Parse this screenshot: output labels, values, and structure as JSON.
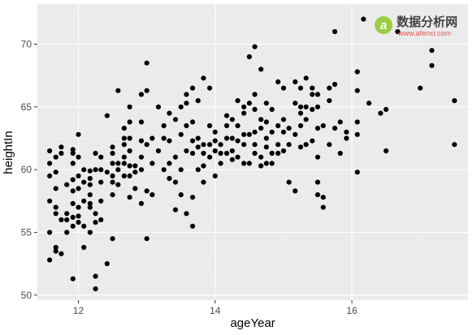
{
  "chart_data": {
    "type": "scatter",
    "xlabel": "ageYear",
    "ylabel": "heightIn",
    "xlim": [
      11.4,
      17.7
    ],
    "ylim": [
      49.6,
      73.2
    ],
    "x_ticks": [
      12,
      14,
      16
    ],
    "y_ticks": [
      50,
      55,
      60,
      65,
      70
    ],
    "x_tick_labels": [
      "12",
      "14",
      "16"
    ],
    "y_tick_labels": [
      "50",
      "55",
      "60",
      "65",
      "70"
    ],
    "grid": true,
    "legend": "none",
    "point_color": "#000000",
    "panel_color": "#ebebeb",
    "x": [
      11.58,
      11.58,
      11.58,
      11.58,
      11.58,
      11.58,
      11.67,
      11.67,
      11.67,
      11.67,
      11.67,
      11.67,
      11.67,
      11.75,
      11.75,
      11.75,
      11.75,
      11.83,
      11.83,
      11.83,
      11.83,
      11.92,
      11.92,
      11.92,
      11.92,
      11.92,
      11.92,
      11.92,
      11.92,
      11.92,
      12.0,
      12.0,
      12.0,
      12.0,
      12.0,
      12.0,
      12.0,
      12.08,
      12.08,
      12.08,
      12.08,
      12.08,
      12.17,
      12.17,
      12.17,
      12.17,
      12.17,
      12.17,
      12.17,
      12.25,
      12.25,
      12.25,
      12.25,
      12.25,
      12.25,
      12.33,
      12.33,
      12.33,
      12.33,
      12.33,
      12.42,
      12.42,
      12.42,
      12.5,
      12.5,
      12.5,
      12.5,
      12.5,
      12.5,
      12.5,
      12.58,
      12.58,
      12.58,
      12.58,
      12.67,
      12.67,
      12.67,
      12.67,
      12.67,
      12.67,
      12.75,
      12.75,
      12.75,
      12.75,
      12.75,
      12.75,
      12.75,
      12.83,
      12.83,
      12.83,
      12.92,
      12.92,
      12.92,
      12.92,
      12.92,
      12.92,
      13.0,
      13.0,
      13.0,
      13.0,
      13.0,
      13.08,
      13.08,
      13.08,
      13.17,
      13.17,
      13.25,
      13.25,
      13.25,
      13.33,
      13.33,
      13.33,
      13.33,
      13.42,
      13.42,
      13.42,
      13.42,
      13.5,
      13.5,
      13.5,
      13.5,
      13.58,
      13.58,
      13.58,
      13.58,
      13.58,
      13.67,
      13.67,
      13.67,
      13.67,
      13.67,
      13.67,
      13.75,
      13.75,
      13.75,
      13.75,
      13.83,
      13.83,
      13.83,
      13.83,
      13.83,
      13.92,
      13.92,
      13.92,
      13.92,
      14.0,
      14.0,
      14.0,
      14.0,
      14.08,
      14.08,
      14.08,
      14.17,
      14.17,
      14.17,
      14.17,
      14.25,
      14.25,
      14.25,
      14.25,
      14.33,
      14.33,
      14.33,
      14.33,
      14.42,
      14.42,
      14.42,
      14.42,
      14.42,
      14.5,
      14.5,
      14.5,
      14.5,
      14.58,
      14.58,
      14.58,
      14.58,
      14.58,
      14.58,
      14.67,
      14.67,
      14.67,
      14.67,
      14.67,
      14.75,
      14.75,
      14.75,
      14.75,
      14.75,
      14.83,
      14.83,
      14.83,
      14.83,
      14.92,
      14.92,
      14.92,
      14.92,
      15.0,
      15.0,
      15.0,
      15.0,
      15.08,
      15.08,
      15.08,
      15.17,
      15.17,
      15.17,
      15.17,
      15.25,
      15.25,
      15.25,
      15.25,
      15.25,
      15.33,
      15.33,
      15.33,
      15.33,
      15.42,
      15.42,
      15.42,
      15.42,
      15.5,
      15.5,
      15.5,
      15.5,
      15.5,
      15.5,
      15.58,
      15.58,
      15.58,
      15.67,
      15.67,
      15.67,
      15.75,
      15.75,
      15.75,
      15.83,
      15.83,
      15.92,
      15.92,
      16.08,
      16.08,
      16.08,
      16.08,
      16.08,
      16.17,
      16.25,
      16.42,
      16.5,
      16.5,
      16.67,
      17.0,
      17.17,
      17.17,
      17.5,
      17.5
    ],
    "y": [
      52.8,
      55.0,
      57.5,
      59.5,
      60.5,
      61.5,
      53.5,
      53.8,
      56.5,
      57.0,
      58.5,
      59.8,
      61.0,
      53.3,
      56.0,
      61.3,
      61.8,
      55.0,
      56.0,
      56.5,
      58.8,
      51.3,
      55.5,
      56.2,
      57.3,
      58.3,
      59.2,
      60.5,
      61.3,
      61.6,
      55.8,
      56.3,
      57.0,
      58.5,
      59.5,
      61.0,
      62.8,
      53.8,
      55.5,
      57.5,
      59.0,
      60.0,
      55.0,
      57.0,
      57.3,
      58.0,
      58.8,
      59.3,
      59.9,
      50.5,
      51.5,
      55.8,
      56.5,
      60.0,
      61.3,
      56.0,
      57.5,
      59.0,
      60.0,
      61.0,
      52.5,
      59.8,
      64.3,
      54.5,
      58.0,
      59.0,
      59.5,
      60.5,
      61.3,
      61.8,
      58.8,
      60.0,
      60.5,
      66.3,
      59.5,
      60.5,
      61.0,
      62.0,
      62.5,
      63.3,
      57.8,
      59.5,
      60.3,
      61.5,
      62.5,
      63.8,
      65.0,
      58.5,
      59.8,
      60.3,
      57.3,
      60.0,
      61.0,
      62.3,
      63.8,
      66.0,
      54.5,
      58.3,
      62.0,
      66.3,
      68.5,
      58.0,
      60.5,
      62.5,
      61.5,
      65.0,
      60.0,
      62.5,
      63.5,
      59.3,
      60.5,
      62.3,
      64.5,
      56.8,
      59.0,
      61.0,
      64.0,
      58.0,
      60.0,
      62.8,
      65.0,
      56.5,
      61.5,
      63.5,
      65.3,
      66.0,
      55.5,
      57.8,
      61.3,
      62.3,
      63.8,
      66.5,
      60.0,
      61.8,
      62.5,
      65.5,
      59.0,
      60.3,
      61.3,
      62.0,
      67.3,
      61.0,
      62.0,
      63.5,
      66.5,
      59.5,
      61.5,
      62.3,
      63.0,
      60.5,
      61.3,
      62.0,
      61.3,
      62.5,
      63.5,
      64.3,
      60.8,
      61.5,
      62.5,
      64.0,
      61.0,
      62.3,
      63.5,
      65.5,
      60.5,
      62.0,
      62.8,
      64.5,
      65.0,
      60.5,
      62.8,
      65.3,
      69.0,
      61.3,
      62.0,
      63.0,
      64.8,
      66.0,
      69.8,
      60.3,
      61.0,
      63.3,
      64.0,
      68.0,
      60.5,
      61.8,
      62.5,
      63.8,
      65.3,
      60.5,
      61.3,
      63.0,
      64.8,
      61.3,
      62.0,
      63.5,
      67.0,
      61.5,
      63.0,
      64.0,
      66.5,
      59.0,
      62.0,
      63.3,
      58.3,
      62.8,
      65.3,
      67.0,
      61.8,
      63.5,
      64.5,
      65.0,
      66.5,
      62.0,
      64.0,
      65.0,
      67.3,
      62.3,
      64.8,
      66.0,
      66.5,
      58.0,
      59.0,
      61.0,
      63.3,
      65.0,
      66.0,
      57.0,
      57.8,
      63.5,
      62.0,
      65.5,
      66.5,
      63.3,
      66.8,
      71.0,
      61.3,
      63.8,
      62.5,
      63.0,
      59.8,
      62.8,
      63.8,
      66.3,
      67.8,
      72.0,
      65.3,
      64.5,
      61.5,
      64.8,
      71.0,
      66.5,
      68.3,
      69.5,
      62.0,
      65.5
    ]
  },
  "watermark": {
    "badge": "a",
    "brand": "数据分析网",
    "url": "www.afenxi.com",
    "accent": "#8bc34a",
    "badge_color": "#9ccc43"
  }
}
